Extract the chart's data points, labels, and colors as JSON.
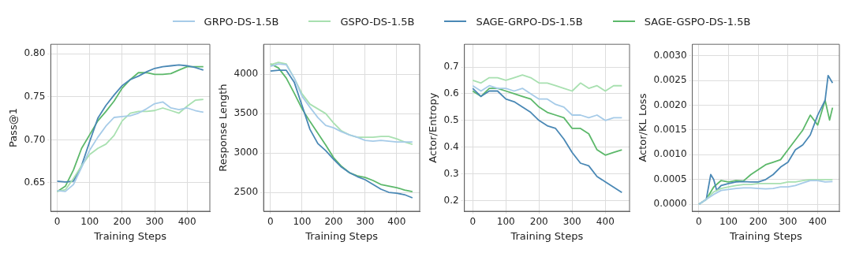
{
  "chart_data": [
    {
      "type": "line",
      "xlabel": "Training Steps",
      "ylabel": "Pass@1",
      "legend": "top",
      "grid": true,
      "xlim": [
        -20,
        470
      ],
      "xticks": [
        0,
        100,
        200,
        300,
        400
      ],
      "ylim": [
        0.617,
        0.811
      ],
      "yticks": [
        {
          "value": 0.65,
          "label": "0.65"
        },
        {
          "value": 0.7,
          "label": "0.70"
        },
        {
          "value": 0.75,
          "label": "0.75"
        },
        {
          "value": 0.8,
          "label": "0.80"
        }
      ],
      "x": [
        0,
        25,
        50,
        75,
        100,
        125,
        150,
        175,
        200,
        225,
        250,
        275,
        300,
        325,
        350,
        375,
        400,
        425,
        450
      ],
      "series": [
        {
          "name": "GRPO-DS-1.5B",
          "color": "#a6cbe8",
          "values": [
            0.641,
            0.64,
            0.648,
            0.668,
            0.688,
            0.703,
            0.716,
            0.726,
            0.727,
            0.728,
            0.731,
            0.736,
            0.742,
            0.744,
            0.737,
            0.735,
            0.737,
            0.734,
            0.732
          ]
        },
        {
          "name": "GSPO-DS-1.5B",
          "color": "#a8e0b0",
          "values": [
            0.64,
            0.642,
            0.655,
            0.67,
            0.683,
            0.69,
            0.695,
            0.705,
            0.722,
            0.731,
            0.733,
            0.733,
            0.734,
            0.737,
            0.734,
            0.731,
            0.739,
            0.746,
            0.747
          ]
        },
        {
          "name": "SAGE-GRPO-DS-1.5B",
          "color": "#4a88b5",
          "values": [
            0.652,
            0.651,
            0.652,
            0.67,
            0.698,
            0.725,
            0.74,
            0.752,
            0.763,
            0.77,
            0.774,
            0.779,
            0.783,
            0.785,
            0.786,
            0.787,
            0.786,
            0.784,
            0.781
          ]
        },
        {
          "name": "SAGE-GSPO-DS-1.5B",
          "color": "#5cb86a",
          "values": [
            0.64,
            0.646,
            0.665,
            0.69,
            0.706,
            0.722,
            0.733,
            0.745,
            0.76,
            0.77,
            0.778,
            0.778,
            0.776,
            0.776,
            0.777,
            0.781,
            0.785,
            0.785,
            0.785
          ]
        }
      ]
    },
    {
      "type": "line",
      "xlabel": "Training Steps",
      "ylabel": "Response Length",
      "grid": true,
      "xlim": [
        -22,
        473
      ],
      "xticks": [
        0,
        100,
        200,
        300,
        400
      ],
      "ylim": [
        2260,
        4380
      ],
      "yticks": [
        2500,
        3000,
        3500,
        4000
      ],
      "x": [
        0,
        25,
        50,
        75,
        100,
        125,
        150,
        175,
        200,
        225,
        250,
        275,
        300,
        325,
        350,
        375,
        400,
        425,
        450
      ],
      "series": [
        {
          "color": "#a6cbe8",
          "values": [
            4100,
            4130,
            4120,
            3950,
            3720,
            3580,
            3450,
            3350,
            3320,
            3270,
            3230,
            3200,
            3160,
            3150,
            3160,
            3150,
            3140,
            3140,
            3140
          ]
        },
        {
          "color": "#a8e0b0",
          "values": [
            4120,
            4150,
            4130,
            3950,
            3750,
            3620,
            3560,
            3500,
            3380,
            3280,
            3230,
            3200,
            3200,
            3200,
            3210,
            3210,
            3180,
            3140,
            3110
          ]
        },
        {
          "color": "#4a88b5",
          "values": [
            4040,
            4050,
            4050,
            3900,
            3600,
            3300,
            3120,
            3030,
            2920,
            2820,
            2750,
            2700,
            2660,
            2600,
            2540,
            2500,
            2490,
            2470,
            2430
          ]
        },
        {
          "color": "#5cb86a",
          "values": [
            4130,
            4080,
            3950,
            3760,
            3560,
            3400,
            3250,
            3100,
            2940,
            2830,
            2750,
            2710,
            2690,
            2650,
            2600,
            2580,
            2560,
            2530,
            2510
          ]
        }
      ]
    },
    {
      "type": "line",
      "xlabel": "Training Steps",
      "ylabel": "Actor/Entropy",
      "grid": true,
      "xlim": [
        -25,
        473
      ],
      "xticks": [
        0,
        100,
        200,
        300,
        400
      ],
      "ylim": [
        0.16,
        0.785
      ],
      "yticks": [
        0.2,
        0.3,
        0.4,
        0.5,
        0.6,
        0.7
      ],
      "x": [
        0,
        25,
        50,
        75,
        100,
        125,
        150,
        175,
        200,
        225,
        250,
        275,
        300,
        325,
        350,
        375,
        400,
        425,
        450
      ],
      "series": [
        {
          "color": "#a6cbe8",
          "values": [
            0.63,
            0.61,
            0.63,
            0.62,
            0.62,
            0.61,
            0.62,
            0.6,
            0.58,
            0.58,
            0.56,
            0.55,
            0.52,
            0.52,
            0.51,
            0.52,
            0.5,
            0.51,
            0.51
          ]
        },
        {
          "color": "#a8e0b0",
          "values": [
            0.65,
            0.64,
            0.66,
            0.66,
            0.65,
            0.66,
            0.67,
            0.66,
            0.64,
            0.64,
            0.63,
            0.62,
            0.61,
            0.64,
            0.62,
            0.63,
            0.61,
            0.63,
            0.63
          ]
        },
        {
          "color": "#4a88b5",
          "values": [
            0.62,
            0.59,
            0.61,
            0.61,
            0.58,
            0.57,
            0.55,
            0.53,
            0.5,
            0.48,
            0.47,
            0.43,
            0.38,
            0.34,
            0.33,
            0.29,
            0.27,
            0.25,
            0.23
          ]
        },
        {
          "color": "#5cb86a",
          "values": [
            0.61,
            0.59,
            0.62,
            0.62,
            0.61,
            0.6,
            0.59,
            0.58,
            0.55,
            0.53,
            0.52,
            0.51,
            0.47,
            0.47,
            0.45,
            0.39,
            0.37,
            0.38,
            0.39
          ]
        }
      ]
    },
    {
      "type": "line",
      "xlabel": "Training Steps",
      "ylabel": "Actor/KL Loss",
      "grid": true,
      "xlim": [
        -22,
        473
      ],
      "xticks": [
        0,
        100,
        200,
        300,
        400
      ],
      "ylim": [
        -0.00014,
        0.00323
      ],
      "yticks": [
        {
          "value": 0,
          "label": "0.0000"
        },
        {
          "value": 0.0005,
          "label": "0.0005"
        },
        {
          "value": 0.001,
          "label": "0.0010"
        },
        {
          "value": 0.0015,
          "label": "0.0015"
        },
        {
          "value": 0.002,
          "label": "0.0020"
        },
        {
          "value": 0.0025,
          "label": "0.0025"
        },
        {
          "value": 0.003,
          "label": "0.0030"
        }
      ],
      "x": [
        0,
        25,
        50,
        75,
        100,
        125,
        150,
        175,
        200,
        225,
        250,
        275,
        300,
        325,
        350,
        375,
        400,
        425,
        450
      ],
      "series": [
        {
          "color": "#a6cbe8",
          "values": [
            0,
            0.0001,
            0.0002,
            0.00028,
            0.0003,
            0.00032,
            0.00033,
            0.00033,
            0.00032,
            0.00031,
            0.00032,
            0.00035,
            0.00035,
            0.00038,
            0.00043,
            0.00048,
            0.00048,
            0.00045,
            0.00046
          ]
        },
        {
          "color": "#a8e0b0",
          "values": [
            0,
            0.0001,
            0.00025,
            0.00032,
            0.00035,
            0.00038,
            0.0004,
            0.0004,
            0.00042,
            0.00042,
            0.00042,
            0.00042,
            0.00045,
            0.00045,
            0.00048,
            0.0005,
            0.0005,
            0.0005,
            0.0005
          ]
        },
        {
          "color": "#4a88b5",
          "x": [
            0,
            25,
            40,
            50,
            60,
            75,
            100,
            125,
            150,
            175,
            200,
            225,
            250,
            275,
            300,
            325,
            350,
            375,
            400,
            425,
            435,
            450
          ],
          "values": [
            0,
            0.0001,
            0.0006,
            0.0005,
            0.00028,
            0.00038,
            0.00042,
            0.00045,
            0.00046,
            0.00045,
            0.00045,
            0.0005,
            0.0006,
            0.00075,
            0.00085,
            0.0011,
            0.0012,
            0.0014,
            0.0018,
            0.0021,
            0.0026,
            0.00245
          ]
        },
        {
          "color": "#5cb86a",
          "x": [
            0,
            25,
            50,
            75,
            100,
            125,
            150,
            175,
            200,
            225,
            250,
            275,
            300,
            325,
            350,
            375,
            400,
            425,
            440,
            450
          ],
          "values": [
            0,
            0.0001,
            0.00035,
            0.00048,
            0.00045,
            0.00048,
            0.00047,
            0.0006,
            0.0007,
            0.0008,
            0.00085,
            0.0009,
            0.0011,
            0.0013,
            0.0015,
            0.0018,
            0.0016,
            0.0021,
            0.0017,
            0.00195
          ]
        }
      ]
    }
  ]
}
